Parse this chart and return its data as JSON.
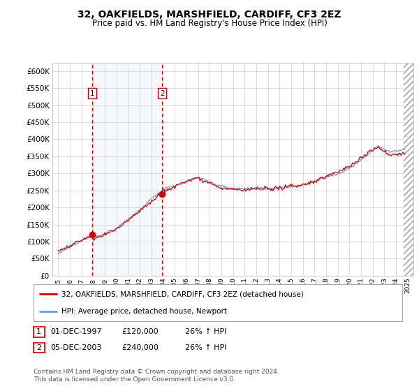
{
  "title": "32, OAKFIELDS, MARSHFIELD, CARDIFF, CF3 2EZ",
  "subtitle": "Price paid vs. HM Land Registry's House Price Index (HPI)",
  "title_fontsize": 10,
  "subtitle_fontsize": 8.5,
  "ylabel_values": [
    0,
    50000,
    100000,
    150000,
    200000,
    250000,
    300000,
    350000,
    400000,
    450000,
    500000,
    550000,
    600000
  ],
  "ylim": [
    0,
    625000
  ],
  "xlim_start": 1994.5,
  "xlim_end": 2025.5,
  "transaction1_x": 1997.917,
  "transaction1_y": 120000,
  "transaction2_x": 2003.917,
  "transaction2_y": 240000,
  "legend_entries": [
    "32, OAKFIELDS, MARSHFIELD, CARDIFF, CF3 2EZ (detached house)",
    "HPI: Average price, detached house, Newport"
  ],
  "legend_colors": [
    "#cc0000",
    "#7799cc"
  ],
  "table_rows": [
    [
      "1",
      "01-DEC-1997",
      "£120,000",
      "26% ↑ HPI"
    ],
    [
      "2",
      "05-DEC-2003",
      "£240,000",
      "26% ↑ HPI"
    ]
  ],
  "footer_text": "Contains HM Land Registry data © Crown copyright and database right 2024.\nThis data is licensed under the Open Government Licence v3.0.",
  "background_color": "#ffffff",
  "grid_color": "#cccccc",
  "red_line_color": "#cc0000",
  "blue_line_color": "#7799cc",
  "shade_color": "#ddeeff",
  "hatch_color": "#aaaaaa"
}
